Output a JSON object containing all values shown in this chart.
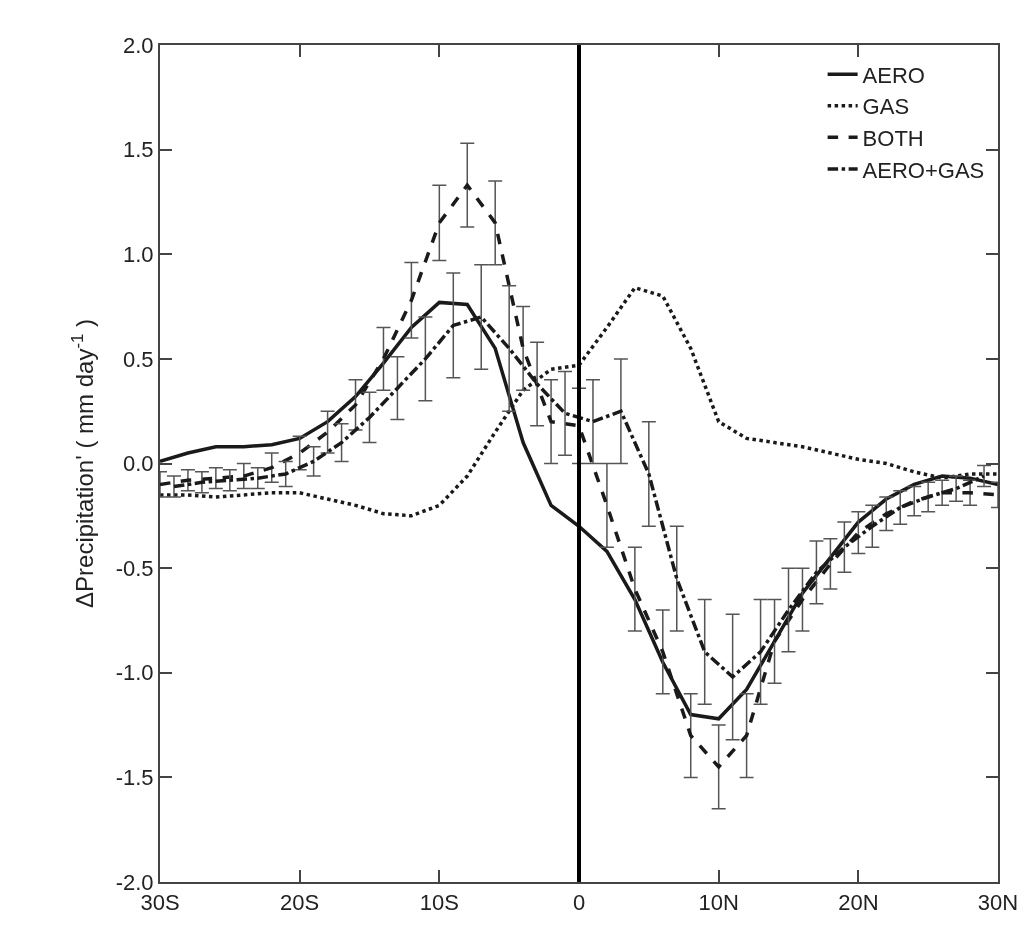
{
  "chart_data": {
    "type": "line",
    "ylabel": "ΔPrecipitation' ( mm day$^{-1}$ )",
    "x": [
      -30,
      -28,
      -26,
      -24,
      -22,
      -20,
      -18,
      -16,
      -14,
      -12,
      -10,
      -8,
      -6,
      -4,
      -2,
      0,
      2,
      4,
      6,
      8,
      10,
      12,
      14,
      16,
      18,
      20,
      22,
      24,
      26,
      28,
      30
    ],
    "series": [
      {
        "name": "AERO",
        "color": "#1a1a1a",
        "line_style": "solid",
        "values": [
          0.01,
          0.05,
          0.08,
          0.08,
          0.09,
          0.12,
          0.2,
          0.32,
          0.48,
          0.65,
          0.77,
          0.76,
          0.55,
          0.1,
          -0.2,
          -0.3,
          -0.42,
          -0.65,
          -0.95,
          -1.2,
          -1.22,
          -1.08,
          -0.85,
          -0.62,
          -0.45,
          -0.28,
          -0.17,
          -0.1,
          -0.06,
          -0.07,
          -0.1
        ]
      },
      {
        "name": "GAS",
        "color": "#1a1a1a",
        "line_style": "dotted",
        "values": [
          -0.15,
          -0.15,
          -0.16,
          -0.15,
          -0.14,
          -0.14,
          -0.17,
          -0.2,
          -0.24,
          -0.25,
          -0.2,
          -0.06,
          0.15,
          0.35,
          0.45,
          0.47,
          0.65,
          0.84,
          0.8,
          0.55,
          0.2,
          0.12,
          0.1,
          0.08,
          0.05,
          0.02,
          0.0,
          -0.04,
          -0.07,
          -0.05,
          -0.05
        ]
      },
      {
        "name": "BOTH",
        "color": "#1a1a1a",
        "line_style": "dashed",
        "values": [
          -0.1,
          -0.08,
          -0.07,
          -0.06,
          -0.02,
          0.05,
          0.15,
          0.28,
          0.5,
          0.78,
          1.15,
          1.33,
          1.15,
          0.55,
          0.2,
          0.18,
          -0.2,
          -0.6,
          -0.9,
          -1.3,
          -1.45,
          -1.3,
          -0.85,
          -0.65,
          -0.48,
          -0.33,
          -0.24,
          -0.18,
          -0.14,
          -0.14,
          -0.15
        ],
        "errors": [
          0.06,
          0.05,
          0.05,
          0.06,
          0.07,
          0.08,
          0.1,
          0.12,
          0.15,
          0.18,
          0.18,
          0.2,
          0.2,
          0.2,
          0.2,
          0.18,
          0.2,
          0.2,
          0.2,
          0.2,
          0.2,
          0.2,
          0.2,
          0.15,
          0.12,
          0.1,
          0.08,
          0.07,
          0.06,
          0.06,
          0.06
        ]
      },
      {
        "name": "AERO+GAS",
        "color": "#1a1a1a",
        "line_style": "dashdot",
        "x": [
          -29,
          -27,
          -25,
          -23,
          -21,
          -19,
          -17,
          -15,
          -13,
          -11,
          -9,
          -7,
          -5,
          -3,
          -1,
          1,
          3,
          5,
          7,
          9,
          11,
          13,
          15,
          17,
          19,
          21,
          23,
          25,
          27,
          29
        ],
        "values": [
          -0.11,
          -0.09,
          -0.08,
          -0.07,
          -0.05,
          0.01,
          0.1,
          0.22,
          0.36,
          0.5,
          0.66,
          0.7,
          0.55,
          0.38,
          0.24,
          0.2,
          0.25,
          -0.05,
          -0.55,
          -0.9,
          -1.02,
          -0.9,
          -0.7,
          -0.52,
          -0.4,
          -0.3,
          -0.21,
          -0.16,
          -0.12,
          -0.06
        ],
        "errors": [
          0.05,
          0.05,
          0.05,
          0.05,
          0.06,
          0.07,
          0.09,
          0.12,
          0.15,
          0.2,
          0.25,
          0.25,
          0.3,
          0.2,
          0.2,
          0.2,
          0.25,
          0.25,
          0.25,
          0.25,
          0.3,
          0.25,
          0.2,
          0.15,
          0.12,
          0.1,
          0.08,
          0.07,
          0.06,
          0.05
        ]
      }
    ],
    "xlim": [
      -30,
      30
    ],
    "xticks": [
      {
        "value": -30,
        "label": "30S"
      },
      {
        "value": -20,
        "label": "20S"
      },
      {
        "value": -10,
        "label": "10S"
      },
      0,
      {
        "value": 10,
        "label": "10N"
      },
      {
        "value": 20,
        "label": "20N"
      },
      {
        "value": 30,
        "label": "30N"
      }
    ],
    "ylim": [
      -2.0,
      2.0
    ],
    "yticks": [
      {
        "value": -2,
        "label": "-2.0"
      },
      {
        "value": -1.5,
        "label": "-1.5"
      },
      {
        "value": -1,
        "label": "-1.0"
      },
      {
        "value": -0.5,
        "label": "-0.5"
      },
      {
        "value": 0,
        "label": "0.0"
      },
      {
        "value": 0.5,
        "label": "0.5"
      },
      {
        "value": 1,
        "label": "1.0"
      },
      {
        "value": 1.5,
        "label": "1.5"
      },
      {
        "value": 2,
        "label": "2.0"
      }
    ],
    "ref_lines": [
      {
        "axis": "x",
        "value": 0,
        "color": "#000000"
      }
    ],
    "legend": "top right",
    "marker": "none"
  }
}
